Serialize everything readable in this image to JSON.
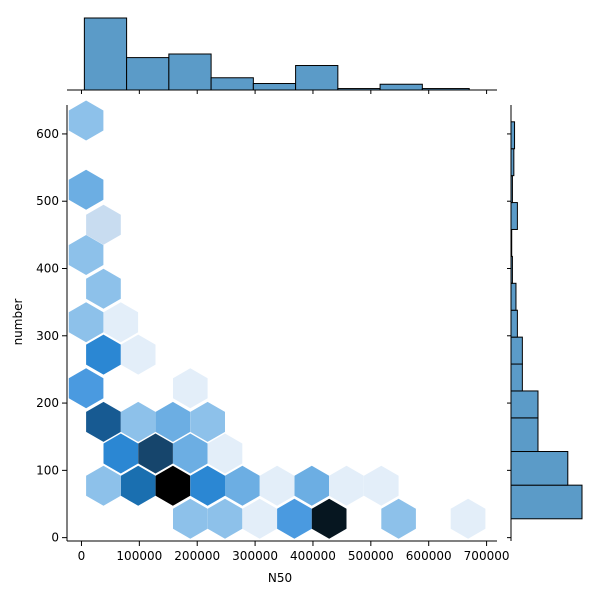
{
  "chart_data": {
    "type": "hexbin-jointplot",
    "xlabel": "N50",
    "ylabel": "number",
    "xlim": [
      -25000,
      718000
    ],
    "ylim": [
      -5,
      643
    ],
    "x_ticks": [
      0,
      100000,
      200000,
      300000,
      400000,
      500000,
      600000,
      700000
    ],
    "x_tick_labels": [
      "0",
      "100000",
      "200000",
      "300000",
      "400000",
      "500000",
      "600000",
      "700000"
    ],
    "y_ticks": [
      0,
      100,
      200,
      300,
      400,
      500,
      600
    ],
    "y_tick_labels": [
      "0",
      "100",
      "200",
      "300",
      "400",
      "500",
      "600"
    ],
    "grid": false,
    "colormap": "Blues",
    "colors": {
      "marginal_bar_fill": "#5b9bc8",
      "marginal_bar_edge": "#000000",
      "axis": "#000000",
      "hex_very_light": "#e3eef9",
      "hex_light": "#c8dcf0",
      "hex_light_mid": "#8dc1ea",
      "hex_mid": "#6caee3",
      "hex_mid_strong": "#4a9ae0",
      "hex_strong": "#2b87d3",
      "hex_dark": "#1a6fb0",
      "hex_darker": "#175a92",
      "hex_darkest": "#16456c",
      "hex_max": "#000000",
      "hex_near_max": "#061620"
    },
    "hexbins": [
      {
        "x": 8000,
        "y": 620,
        "level": "light_mid"
      },
      {
        "x": 8000,
        "y": 517,
        "level": "mid"
      },
      {
        "x": 38000,
        "y": 465,
        "level": "light"
      },
      {
        "x": 8000,
        "y": 420,
        "level": "light_mid"
      },
      {
        "x": 38000,
        "y": 370,
        "level": "light_mid"
      },
      {
        "x": 8000,
        "y": 320,
        "level": "light_mid"
      },
      {
        "x": 68000,
        "y": 320,
        "level": "very_light"
      },
      {
        "x": 38000,
        "y": 272,
        "level": "strong"
      },
      {
        "x": 98000,
        "y": 272,
        "level": "very_light"
      },
      {
        "x": 8000,
        "y": 222,
        "level": "mid_strong"
      },
      {
        "x": 188000,
        "y": 222,
        "level": "very_light"
      },
      {
        "x": 38000,
        "y": 172,
        "level": "darker"
      },
      {
        "x": 98000,
        "y": 172,
        "level": "light_mid"
      },
      {
        "x": 158000,
        "y": 172,
        "level": "mid"
      },
      {
        "x": 218000,
        "y": 172,
        "level": "light_mid"
      },
      {
        "x": 68000,
        "y": 125,
        "level": "strong"
      },
      {
        "x": 128000,
        "y": 125,
        "level": "darkest"
      },
      {
        "x": 188000,
        "y": 125,
        "level": "mid"
      },
      {
        "x": 248000,
        "y": 125,
        "level": "very_light"
      },
      {
        "x": 38000,
        "y": 77,
        "level": "light_mid"
      },
      {
        "x": 98000,
        "y": 77,
        "level": "dark"
      },
      {
        "x": 158000,
        "y": 77,
        "level": "max"
      },
      {
        "x": 218000,
        "y": 77,
        "level": "strong"
      },
      {
        "x": 278000,
        "y": 77,
        "level": "mid"
      },
      {
        "x": 338000,
        "y": 77,
        "level": "very_light"
      },
      {
        "x": 398000,
        "y": 77,
        "level": "mid"
      },
      {
        "x": 458000,
        "y": 77,
        "level": "very_light"
      },
      {
        "x": 518000,
        "y": 77,
        "level": "very_light"
      },
      {
        "x": 188000,
        "y": 28,
        "level": "light_mid"
      },
      {
        "x": 248000,
        "y": 28,
        "level": "light_mid"
      },
      {
        "x": 308000,
        "y": 28,
        "level": "very_light"
      },
      {
        "x": 368000,
        "y": 28,
        "level": "mid_strong"
      },
      {
        "x": 428000,
        "y": 28,
        "level": "near_max"
      },
      {
        "x": 548000,
        "y": 28,
        "level": "light_mid"
      },
      {
        "x": 668000,
        "y": 28,
        "level": "very_light"
      }
    ],
    "x_marginal_histogram": {
      "bin_edges": [
        5000,
        78000,
        151000,
        224000,
        297000,
        370000,
        443000,
        516000,
        589000,
        670000
      ],
      "relative_heights": [
        1.0,
        0.45,
        0.5,
        0.17,
        0.09,
        0.34,
        0.02,
        0.08,
        0.02
      ]
    },
    "y_marginal_histogram": {
      "bin_edges": [
        28,
        78,
        128,
        178,
        218,
        258,
        298,
        338,
        378,
        418,
        458,
        498,
        538,
        578,
        618
      ],
      "relative_widths": [
        1.0,
        0.8,
        0.38,
        0.38,
        0.16,
        0.16,
        0.09,
        0.07,
        0.02,
        0.01,
        0.09,
        0.02,
        0.04,
        0.05
      ]
    }
  }
}
